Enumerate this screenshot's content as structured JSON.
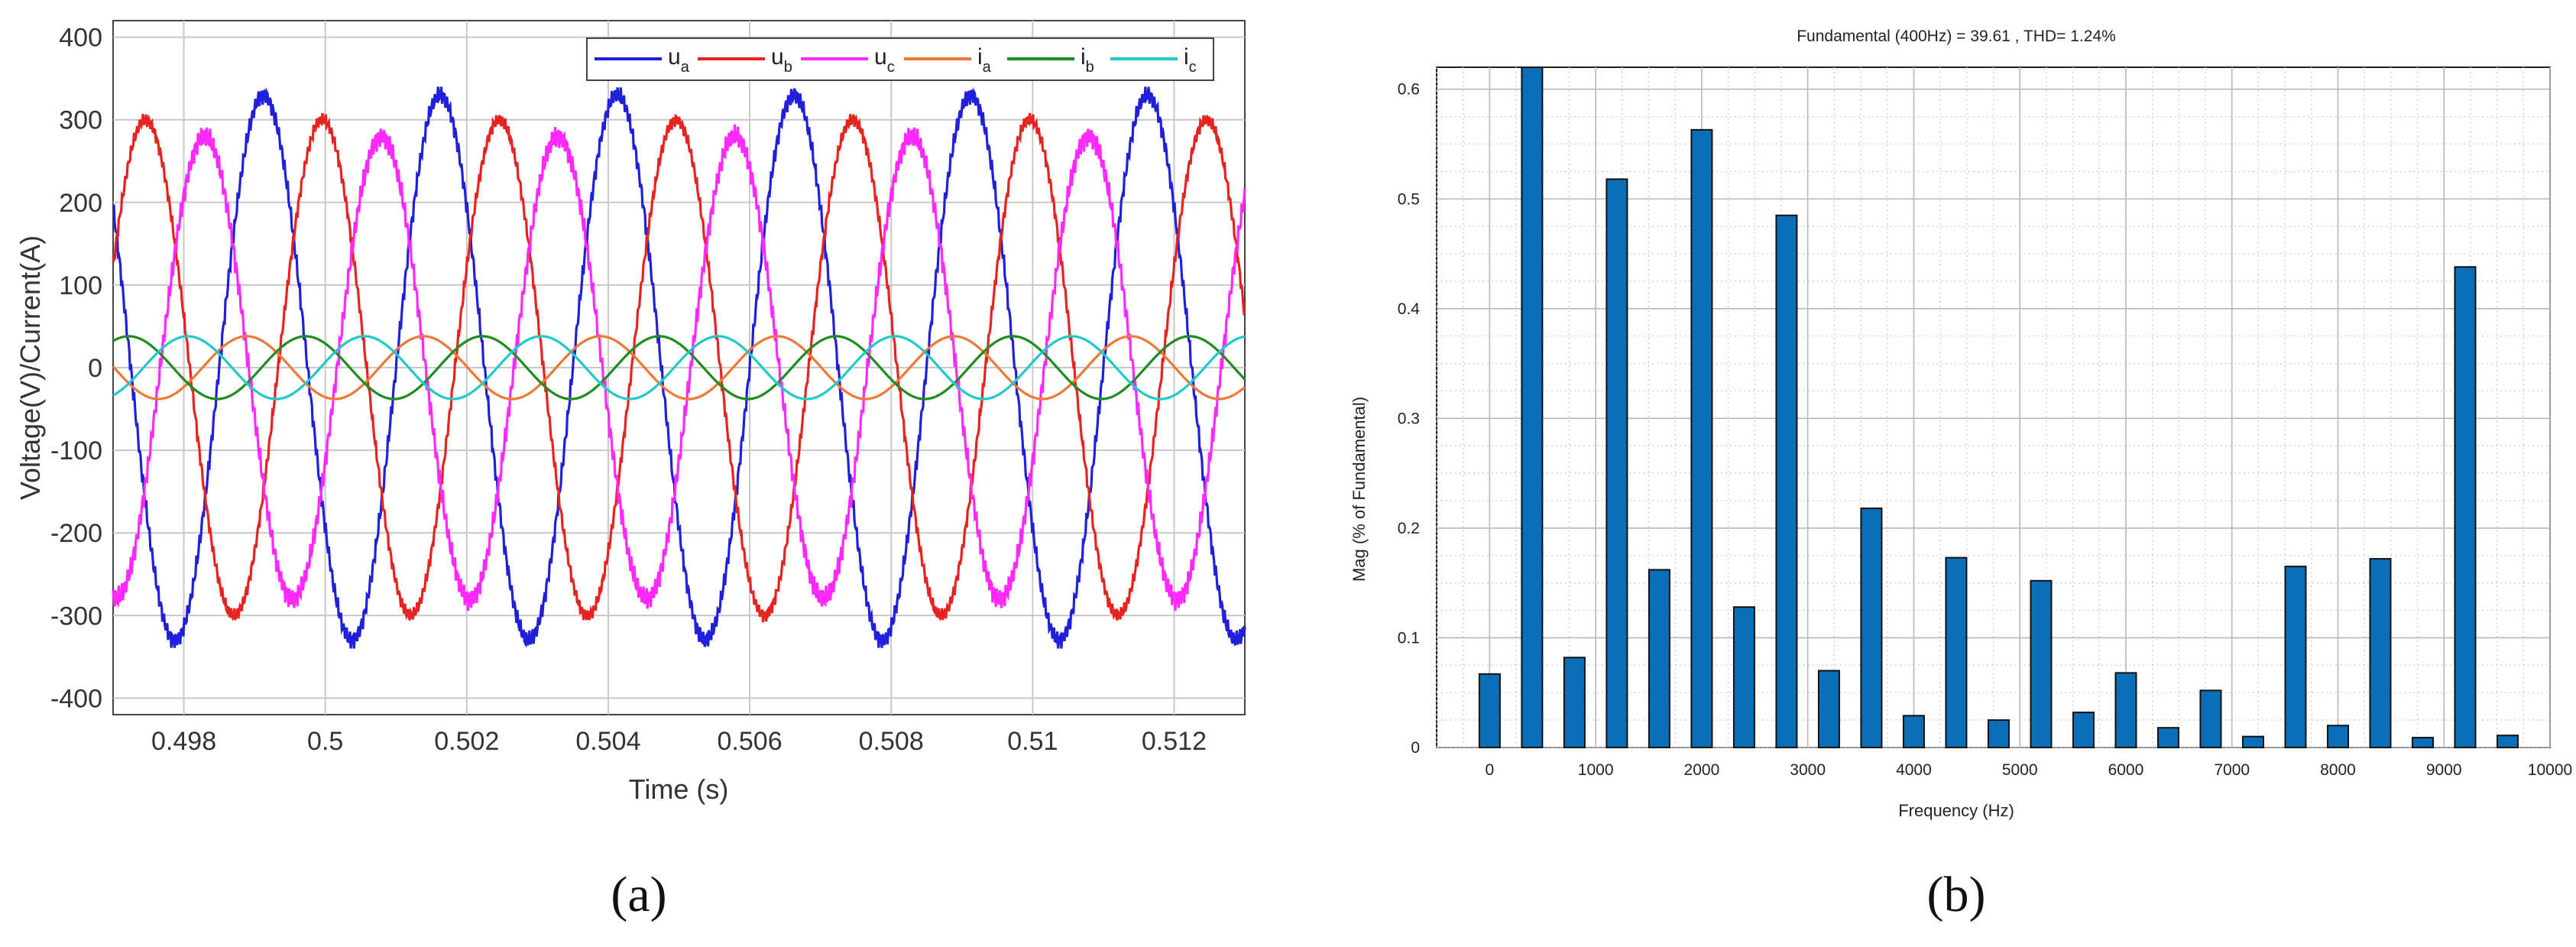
{
  "chart_data": [
    {
      "type": "line",
      "panel_label": "(a)",
      "title": "",
      "xlabel": "Time (s)",
      "ylabel": "Voltage(V)/Current(A)",
      "xlim": [
        0.497,
        0.513
      ],
      "ylim": [
        -420,
        420
      ],
      "x_ticks": [
        0.498,
        0.5,
        0.502,
        0.504,
        0.506,
        0.508,
        0.51,
        0.512
      ],
      "x_tick_labels": [
        "0.498",
        "0.5",
        "0.502",
        "0.504",
        "0.506",
        "0.508",
        "0.51",
        "0.512"
      ],
      "y_ticks": [
        -400,
        -300,
        -200,
        -100,
        0,
        100,
        200,
        300,
        400
      ],
      "y_tick_labels": [
        "-400",
        "-300",
        "-200",
        "-100",
        "0",
        "100",
        "200",
        "300",
        "400"
      ],
      "grid": true,
      "legend_position": "top-right",
      "series": [
        {
          "name": "u",
          "sub": "a",
          "color": "#1f1fdc",
          "frequency_hz": 400,
          "amplitude": 330,
          "phase_deg": 216,
          "ripple": 8
        },
        {
          "name": "u",
          "sub": "b",
          "color": "#e6231e",
          "frequency_hz": 400,
          "amplitude": 300,
          "phase_deg": 96,
          "ripple": 6
        },
        {
          "name": "u",
          "sub": "c",
          "color": "#ff28ff",
          "frequency_hz": 400,
          "amplitude": 280,
          "phase_deg": 336,
          "ripple": 10
        },
        {
          "name": "i",
          "sub": "a",
          "color": "#f07837",
          "frequency_hz": 400,
          "amplitude": 38,
          "phase_deg": 250,
          "ripple": 0
        },
        {
          "name": "i",
          "sub": "b",
          "color": "#1e8c1e",
          "frequency_hz": 400,
          "amplitude": 38,
          "phase_deg": 130,
          "ripple": 0
        },
        {
          "name": "i",
          "sub": "c",
          "color": "#23c8c8",
          "frequency_hz": 400,
          "amplitude": 38,
          "phase_deg": 10,
          "ripple": 0
        }
      ]
    },
    {
      "type": "bar",
      "panel_label": "(b)",
      "title": "Fundamental (400Hz) = 39.61 , THD= 1.24%",
      "xlabel": "Frequency (Hz)",
      "ylabel": "Mag (% of Fundamental)",
      "xlim": [
        -500,
        10000
      ],
      "ylim": [
        0,
        0.62
      ],
      "x_ticks": [
        0,
        1000,
        2000,
        3000,
        4000,
        5000,
        6000,
        7000,
        8000,
        9000,
        10000
      ],
      "x_tick_labels": [
        "0",
        "1000",
        "2000",
        "3000",
        "4000",
        "5000",
        "6000",
        "7000",
        "8000",
        "9000",
        "10000"
      ],
      "y_ticks": [
        0,
        0.1,
        0.2,
        0.3,
        0.4,
        0.5,
        0.6
      ],
      "y_tick_labels": [
        "0",
        "0.1",
        "0.2",
        "0.3",
        "0.4",
        "0.5",
        "0.6"
      ],
      "grid": true,
      "bar_color": "#0b6fb8",
      "x": [
        0,
        400,
        800,
        1200,
        1600,
        2000,
        2400,
        2800,
        3200,
        3600,
        4000,
        4400,
        4800,
        5200,
        5600,
        6000,
        6400,
        6800,
        7200,
        7600,
        8000,
        8400,
        8800,
        9200,
        9600
      ],
      "values": [
        0.067,
        0.62,
        0.082,
        0.518,
        0.162,
        0.563,
        0.128,
        0.485,
        0.07,
        0.218,
        0.029,
        0.173,
        0.025,
        0.152,
        0.032,
        0.068,
        0.018,
        0.052,
        0.01,
        0.165,
        0.02,
        0.172,
        0.009,
        0.438,
        0.011
      ]
    }
  ]
}
